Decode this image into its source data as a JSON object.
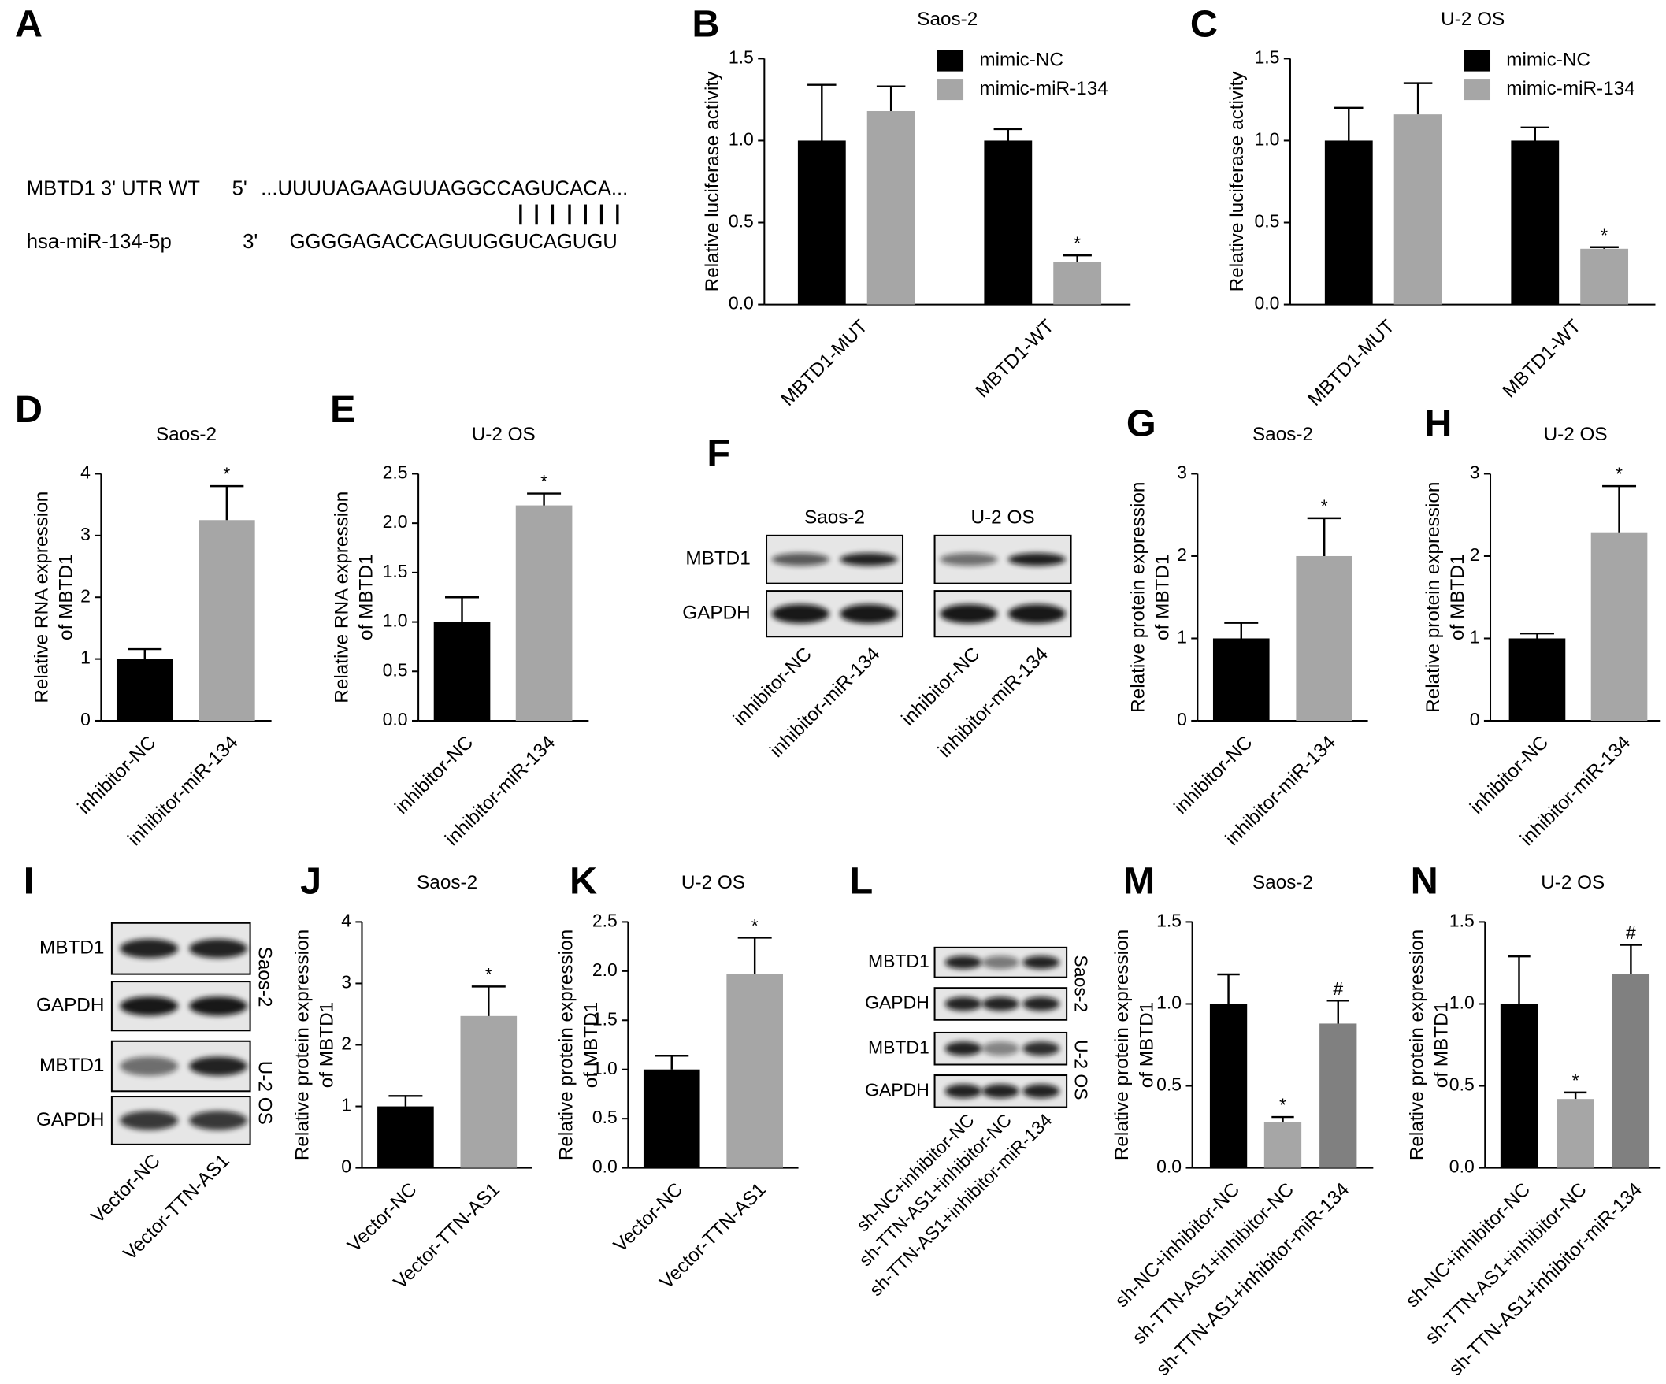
{
  "panel_labels": [
    "A",
    "B",
    "C",
    "D",
    "E",
    "F",
    "G",
    "H",
    "I",
    "J",
    "K",
    "L",
    "M",
    "N"
  ],
  "sequence_panel": {
    "rows": [
      {
        "label": "MBTD1 3' UTR WT",
        "end": "5'",
        "sequence": "...UUUUAGAAGUUAGGCCAGUCACA..."
      },
      {
        "label": "hsa-miR-134-5p",
        "end": "3'",
        "sequence": "GGGGAGACCAGUUGGUCAGUGU"
      }
    ]
  },
  "blots": [
    {
      "cell_lines": [
        "Saos-2",
        "U-2 OS"
      ],
      "proteins": [
        "MBTD1",
        "GAPDH"
      ],
      "lanes": [
        "inhibitor-NC",
        "inhibitor-miR-134",
        "inhibitor-NC",
        "inhibitor-miR-134"
      ]
    },
    {
      "cell_lines": [
        "Saos-2",
        "U-2 OS"
      ],
      "proteins": [
        "MBTD1",
        "GAPDH",
        "MBTD1",
        "GAPDH"
      ],
      "lanes": [
        "Vector-NC",
        "Vector-TTN-AS1"
      ]
    },
    {
      "cell_lines": [
        "Saos-2",
        "U-2 OS"
      ],
      "proteins": [
        "MBTD1",
        "GAPDH",
        "MBTD1",
        "GAPDH"
      ],
      "lanes": [
        "sh-NC+inhibitor-NC",
        "sh-TTN-AS1+inhibitor-NC",
        "sh-TTN-AS1+inhibitor-miR-134"
      ]
    }
  ],
  "chart_data": [
    {
      "type": "bar",
      "title": "Saos-2",
      "ylabel": [
        "Relative luciferase activity"
      ],
      "categories": [
        "MBTD1-MUT",
        "MBTD1-WT"
      ],
      "series": [
        {
          "name": "mimic-NC",
          "color": "#000000",
          "values": [
            1.0,
            1.0
          ],
          "errors": [
            0.34,
            0.07
          ],
          "annotations": [
            null,
            null
          ]
        },
        {
          "name": "mimic-miR-134",
          "color": "#a6a6a6",
          "values": [
            1.18,
            0.26
          ],
          "errors": [
            0.15,
            0.04
          ],
          "annotations": [
            null,
            "*"
          ]
        }
      ],
      "ylim": [
        0,
        1.5
      ],
      "yticks": [
        {
          "value": 0,
          "label": "0.0"
        },
        0.5,
        {
          "value": 1,
          "label": "1.0"
        },
        1.5
      ]
    },
    {
      "type": "bar",
      "title": "U-2 OS",
      "ylabel": [
        "Relative luciferase activity"
      ],
      "categories": [
        "MBTD1-MUT",
        "MBTD1-WT"
      ],
      "series": [
        {
          "name": "mimic-NC",
          "color": "#000000",
          "values": [
            1.0,
            1.0
          ],
          "errors": [
            0.2,
            0.08
          ],
          "annotations": [
            null,
            null
          ]
        },
        {
          "name": "mimic-miR-134",
          "color": "#a6a6a6",
          "values": [
            1.16,
            0.34
          ],
          "errors": [
            0.19,
            0.01
          ],
          "annotations": [
            null,
            "*"
          ]
        }
      ],
      "ylim": [
        0,
        1.5
      ],
      "yticks": [
        {
          "value": 0,
          "label": "0.0"
        },
        0.5,
        {
          "value": 1,
          "label": "1.0"
        },
        1.5
      ]
    },
    {
      "type": "bar",
      "title": "Saos-2",
      "ylabel": [
        "Relative RNA expression",
        "of MBTD1"
      ],
      "categories": [
        "inhibitor-NC",
        "inhibitor-miR-134"
      ],
      "values": [
        1.0,
        3.25
      ],
      "errors": [
        0.16,
        0.55
      ],
      "colors": [
        "#000000",
        "#a6a6a6"
      ],
      "annotations": [
        null,
        "*"
      ],
      "ylim": [
        0,
        4
      ],
      "yticks": [
        0,
        1,
        2,
        3,
        4
      ]
    },
    {
      "type": "bar",
      "title": "U-2 OS",
      "ylabel": [
        "Relative RNA expression",
        "of MBTD1"
      ],
      "categories": [
        "inhibitor-NC",
        "inhibitor-miR-134"
      ],
      "values": [
        1.0,
        2.18
      ],
      "errors": [
        0.25,
        0.12
      ],
      "colors": [
        "#000000",
        "#a6a6a6"
      ],
      "annotations": [
        null,
        "*"
      ],
      "ylim": [
        0,
        2.5
      ],
      "yticks": [
        {
          "value": 0,
          "label": "0.0"
        },
        0.5,
        {
          "value": 1,
          "label": "1.0"
        },
        1.5,
        {
          "value": 2,
          "label": "2.0"
        },
        2.5
      ]
    },
    {
      "type": "bar",
      "title": "Saos-2",
      "ylabel": [
        "Relative protein expression",
        "of MBTD1"
      ],
      "categories": [
        "inhibitor-NC",
        "inhibitor-miR-134"
      ],
      "values": [
        1.0,
        2.0
      ],
      "errors": [
        0.19,
        0.46
      ],
      "colors": [
        "#000000",
        "#a6a6a6"
      ],
      "annotations": [
        null,
        "*"
      ],
      "ylim": [
        0,
        3
      ],
      "yticks": [
        0,
        1,
        2,
        3
      ]
    },
    {
      "type": "bar",
      "title": "U-2 OS",
      "ylabel": [
        "Relative protein expression",
        "of MBTD1"
      ],
      "categories": [
        "inhibitor-NC",
        "inhibitor-miR-134"
      ],
      "values": [
        1.0,
        2.28
      ],
      "errors": [
        0.06,
        0.57
      ],
      "colors": [
        "#000000",
        "#a6a6a6"
      ],
      "annotations": [
        null,
        "*"
      ],
      "ylim": [
        0,
        3
      ],
      "yticks": [
        0,
        1,
        2,
        3
      ]
    },
    {
      "type": "bar",
      "title": "Saos-2",
      "ylabel": [
        "Relative protein expression",
        "of MBTD1"
      ],
      "categories": [
        "Vector-NC",
        "Vector-TTN-AS1"
      ],
      "values": [
        1.0,
        2.47
      ],
      "errors": [
        0.17,
        0.48
      ],
      "colors": [
        "#000000",
        "#a6a6a6"
      ],
      "annotations": [
        null,
        "*"
      ],
      "ylim": [
        0,
        4
      ],
      "yticks": [
        0,
        1,
        2,
        3,
        4
      ]
    },
    {
      "type": "bar",
      "title": "U-2 OS",
      "ylabel": [
        "Relative protein expression",
        "of MBTD1"
      ],
      "categories": [
        "Vector-NC",
        "Vector-TTN-AS1"
      ],
      "values": [
        1.0,
        1.97
      ],
      "errors": [
        0.14,
        0.37
      ],
      "colors": [
        "#000000",
        "#a6a6a6"
      ],
      "annotations": [
        null,
        "*"
      ],
      "ylim": [
        0,
        2.5
      ],
      "yticks": [
        {
          "value": 0,
          "label": "0.0"
        },
        0.5,
        {
          "value": 1,
          "label": "1.0"
        },
        1.5,
        {
          "value": 2,
          "label": "2.0"
        },
        2.5
      ]
    },
    {
      "type": "bar",
      "title": "Saos-2",
      "ylabel": [
        "Relative protein expression",
        "of MBTD1"
      ],
      "categories": [
        "sh-NC+inhibitor-NC",
        "sh-TTN-AS1+inhibitor-NC",
        "sh-TTN-AS1+inhibitor-miR-134"
      ],
      "values": [
        1.0,
        0.28,
        0.88
      ],
      "errors": [
        0.18,
        0.03,
        0.14
      ],
      "colors": [
        "#000000",
        "#a6a6a6",
        "#808080"
      ],
      "annotations": [
        null,
        "*",
        "#"
      ],
      "ylim": [
        0,
        1.5
      ],
      "yticks": [
        {
          "value": 0,
          "label": "0.0"
        },
        0.5,
        {
          "value": 1,
          "label": "1.0"
        },
        1.5
      ]
    },
    {
      "type": "bar",
      "title": "U-2 OS",
      "ylabel": [
        "Relative protein expression",
        "of MBTD1"
      ],
      "categories": [
        "sh-NC+inhibitor-NC",
        "sh-TTN-AS1+inhibitor-NC",
        "sh-TTN-AS1+inhibitor-miR-134"
      ],
      "values": [
        1.0,
        0.42,
        1.18
      ],
      "errors": [
        0.29,
        0.04,
        0.18
      ],
      "colors": [
        "#000000",
        "#a6a6a6",
        "#808080"
      ],
      "annotations": [
        null,
        "*",
        "#"
      ],
      "ylim": [
        0,
        1.5
      ],
      "yticks": [
        {
          "value": 0,
          "label": "0.0"
        },
        0.5,
        {
          "value": 1,
          "label": "1.0"
        },
        1.5
      ]
    }
  ]
}
